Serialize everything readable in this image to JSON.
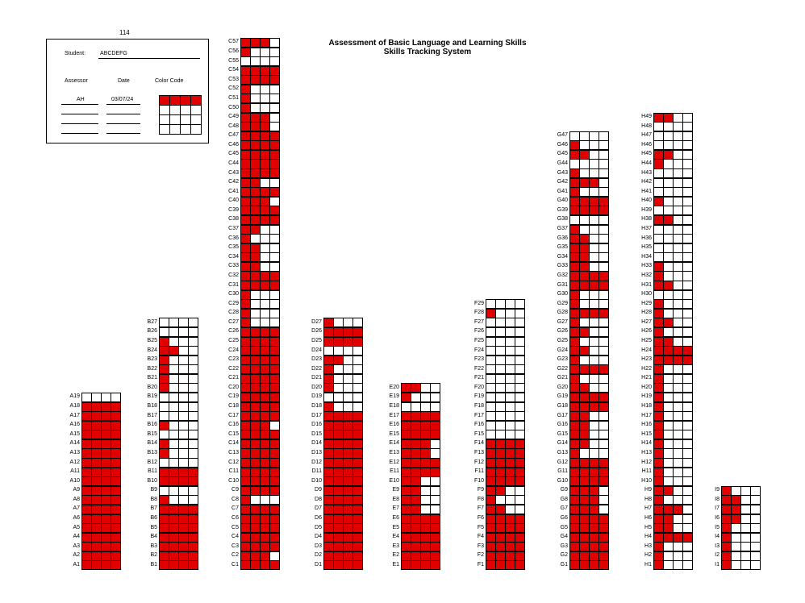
{
  "sheet_label": "114",
  "title_line1": "Assessment of Basic Language and Learning Skills",
  "title_line2": "Skills Tracking System",
  "info": {
    "student_label": "Student:",
    "student_value": "ABCDEFG",
    "assessor_label": "Assessor",
    "date_label": "Date",
    "color_code_label": "Color Code",
    "assessor_value": "AH",
    "date_value": "03/07/24",
    "color_code_fill": 4,
    "color_code_cols": 4,
    "color_code_rows": 4
  },
  "fill_color": "#e00000",
  "columns": [
    {
      "prefix": "A",
      "count": 19,
      "fill": [
        4,
        4,
        4,
        4,
        4,
        4,
        4,
        4,
        4,
        4,
        4,
        4,
        4,
        4,
        4,
        4,
        4,
        4,
        0
      ]
    },
    {
      "prefix": "B",
      "count": 27,
      "fill": [
        4,
        4,
        4,
        4,
        4,
        4,
        4,
        1,
        0,
        4,
        4,
        0,
        1,
        1,
        0,
        1,
        0,
        0,
        0,
        1,
        1,
        1,
        1,
        2,
        1,
        0,
        0
      ]
    },
    {
      "prefix": "C",
      "count": 57,
      "fill": [
        4,
        3,
        4,
        4,
        4,
        4,
        4,
        1,
        4,
        4,
        4,
        4,
        4,
        4,
        4,
        3,
        4,
        4,
        4,
        4,
        4,
        4,
        4,
        4,
        4,
        4,
        1,
        1,
        1,
        1,
        4,
        4,
        2,
        2,
        2,
        1,
        2,
        4,
        4,
        3,
        4,
        2,
        4,
        4,
        4,
        4,
        4,
        3,
        3,
        1,
        1,
        1,
        4,
        4,
        0,
        1,
        3
      ]
    },
    {
      "prefix": "D",
      "count": 27,
      "fill": [
        4,
        4,
        4,
        4,
        4,
        4,
        4,
        4,
        4,
        4,
        4,
        4,
        4,
        4,
        4,
        4,
        4,
        1,
        0,
        1,
        1,
        1,
        2,
        0,
        4,
        4,
        1
      ]
    },
    {
      "prefix": "E",
      "count": 20,
      "fill": [
        4,
        4,
        4,
        4,
        4,
        4,
        2,
        2,
        2,
        2,
        4,
        4,
        3,
        3,
        4,
        4,
        4,
        0,
        1,
        2
      ]
    },
    {
      "prefix": "F",
      "count": 29,
      "fill": [
        4,
        4,
        4,
        4,
        4,
        4,
        2,
        1,
        2,
        4,
        4,
        4,
        4,
        4,
        0,
        0,
        0,
        0,
        0,
        0,
        0,
        0,
        0,
        0,
        0,
        0,
        0,
        1,
        0
      ]
    },
    {
      "prefix": "G",
      "count": 47,
      "fill": [
        4,
        4,
        4,
        4,
        4,
        4,
        3,
        3,
        3,
        4,
        4,
        4,
        1,
        2,
        2,
        2,
        2,
        4,
        4,
        2,
        1,
        4,
        1,
        2,
        1,
        2,
        1,
        4,
        1,
        1,
        4,
        4,
        2,
        2,
        2,
        2,
        1,
        0,
        4,
        4,
        1,
        3,
        1,
        0,
        2,
        1,
        0
      ]
    },
    {
      "prefix": "H",
      "count": 49,
      "fill": [
        1,
        1,
        1,
        4,
        2,
        2,
        3,
        1,
        2,
        1,
        1,
        1,
        1,
        1,
        1,
        1,
        1,
        1,
        1,
        1,
        1,
        1,
        4,
        4,
        2,
        1,
        2,
        1,
        1,
        0,
        2,
        1,
        1,
        0,
        0,
        0,
        0,
        2,
        0,
        1,
        0,
        0,
        0,
        1,
        2,
        0,
        0,
        0,
        2
      ]
    },
    {
      "prefix": "I",
      "count": 9,
      "fill": [
        1,
        1,
        1,
        1,
        1,
        2,
        2,
        2,
        1
      ]
    }
  ]
}
